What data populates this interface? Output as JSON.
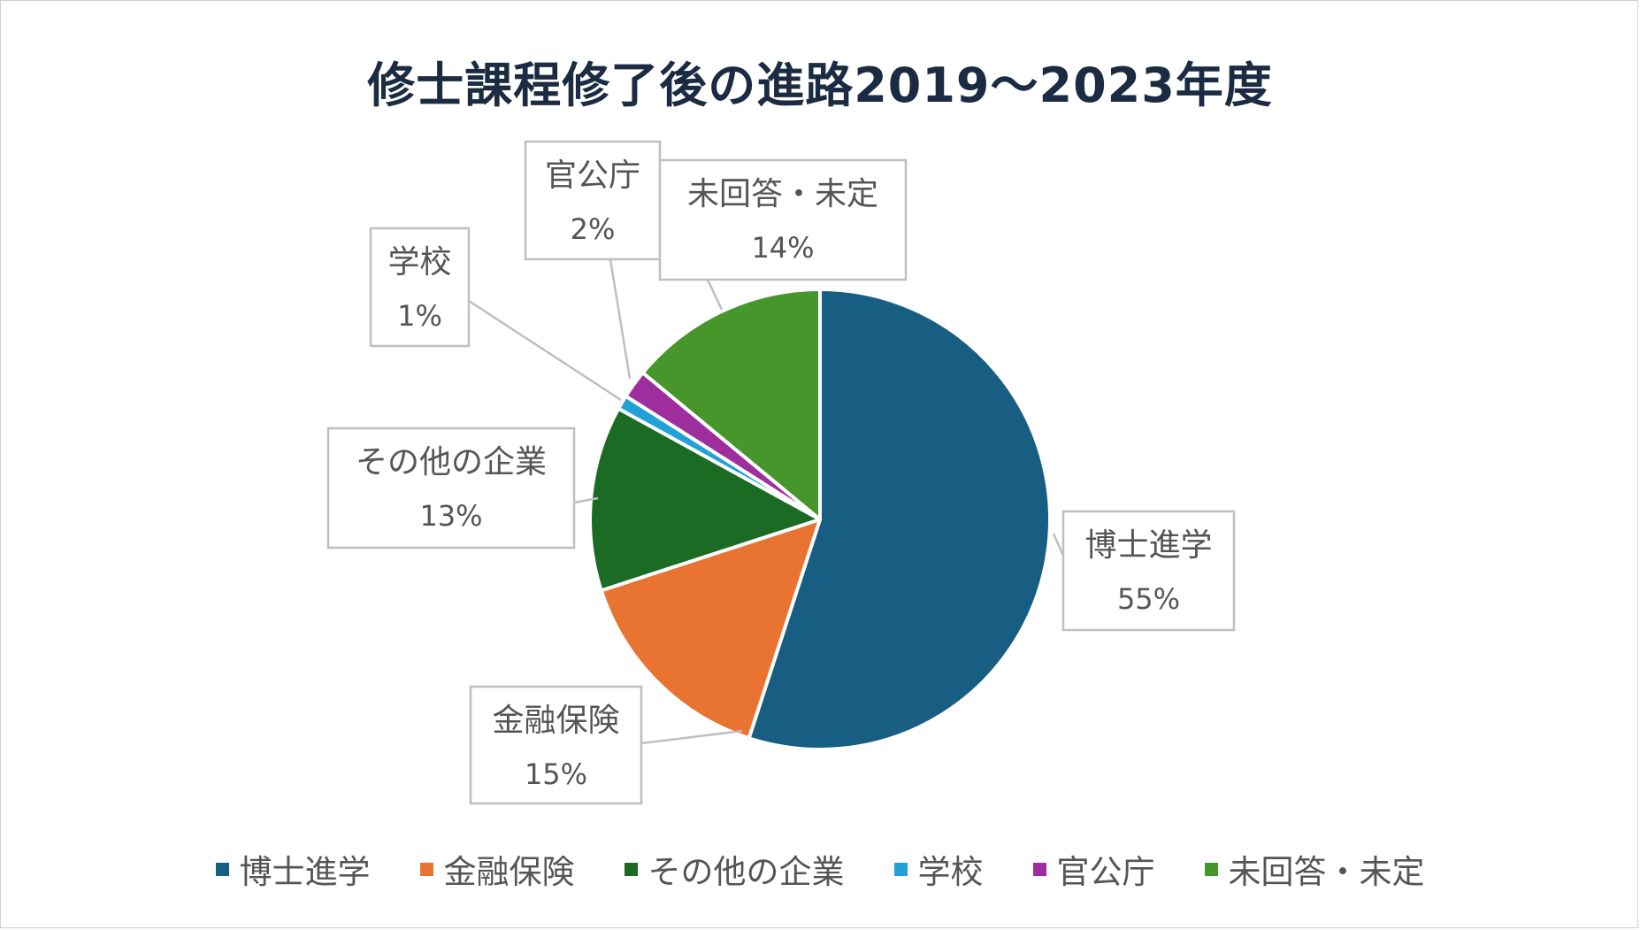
{
  "chart_data": {
    "type": "pie",
    "title": "修士課程修了後の進路2019～2023年度",
    "slices": [
      {
        "name": "博士進学",
        "value": 55,
        "label": "55%",
        "color": "#175e82"
      },
      {
        "name": "金融保険",
        "value": 15,
        "label": "15%",
        "color": "#e97331"
      },
      {
        "name": "その他の企業",
        "value": 13,
        "label": "13%",
        "color": "#1b6b24"
      },
      {
        "name": "学校",
        "value": 1,
        "label": "1%",
        "color": "#22a0d8"
      },
      {
        "name": "官公庁",
        "value": 2,
        "label": "2%",
        "color": "#9e2e9e"
      },
      {
        "name": "未回答・未定",
        "value": 14,
        "label": "14%",
        "color": "#46962b"
      }
    ],
    "legend_position": "bottom"
  }
}
